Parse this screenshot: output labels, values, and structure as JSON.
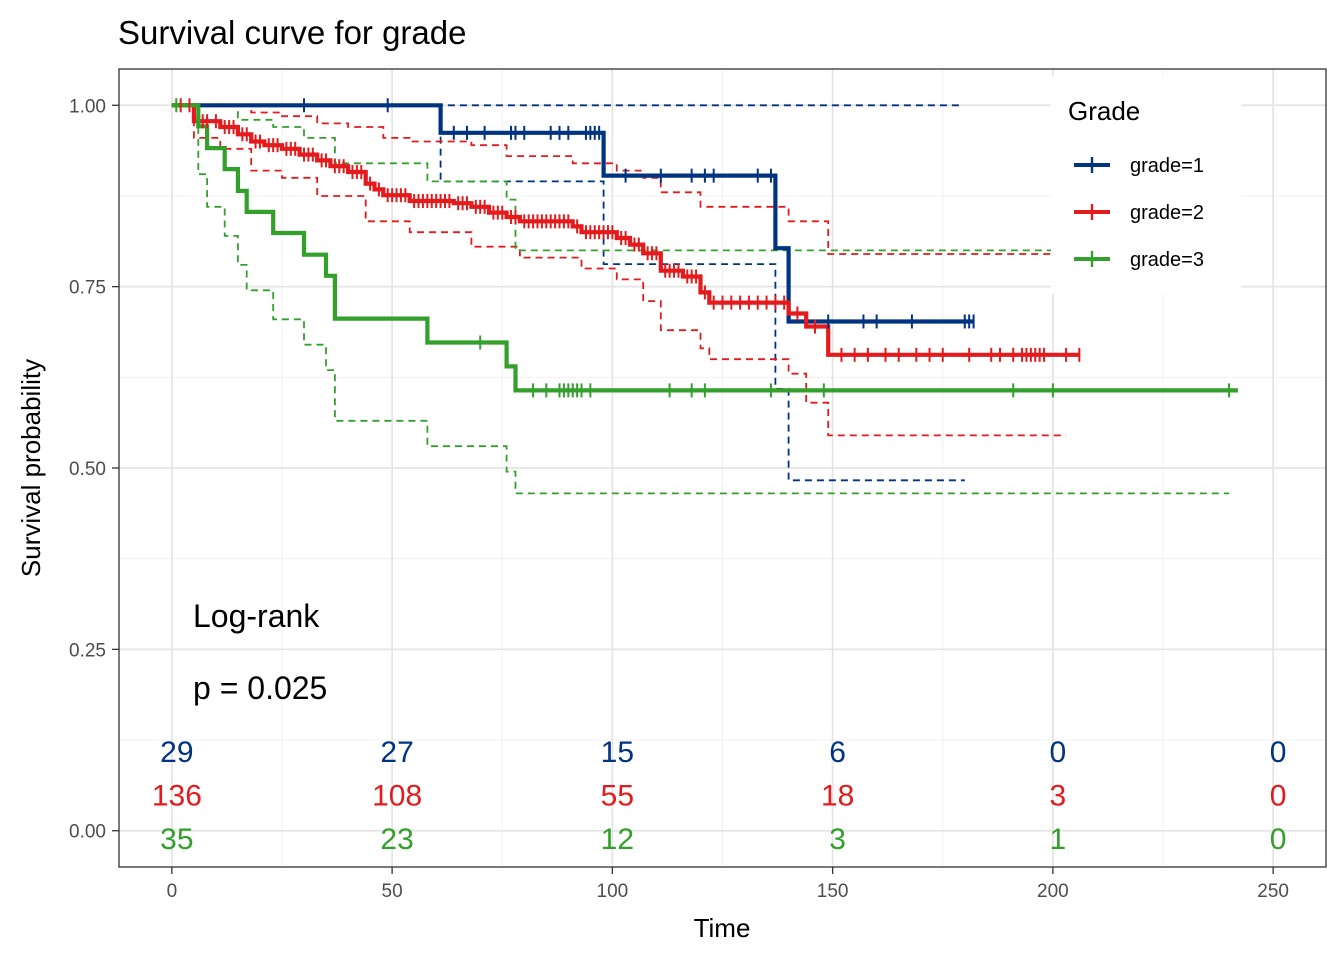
{
  "chart_data": {
    "type": "line",
    "title": "Survival curve for grade",
    "xlabel": "Time",
    "ylabel": "Survival probability",
    "xlim": [
      -12,
      262
    ],
    "ylim": [
      -0.05,
      1.05
    ],
    "x_ticks": [
      0,
      50,
      100,
      150,
      200,
      250
    ],
    "x_tick_labels": [
      "0",
      "50",
      "100",
      "150",
      "200",
      "250"
    ],
    "y_ticks": [
      0.0,
      0.25,
      0.5,
      0.75,
      1.0
    ],
    "y_tick_labels": [
      "0.00",
      "0.25",
      "0.50",
      "0.75",
      "1.00"
    ],
    "grid": true,
    "legend": {
      "title": "Grade",
      "position": "top-right",
      "entries": [
        "grade=1",
        "grade=2",
        "grade=3"
      ]
    },
    "annotations": [
      "Log-rank",
      "p = 0.025"
    ],
    "series": [
      {
        "name": "grade=1",
        "color": "#003380",
        "steps": [
          [
            0,
            1.0
          ],
          [
            61,
            0.962
          ],
          [
            98,
            0.903
          ],
          [
            137,
            0.803
          ],
          [
            140,
            0.702
          ],
          [
            182,
            0.702
          ]
        ],
        "censor_times": [
          30,
          49,
          64,
          67,
          71,
          77,
          78,
          80,
          86,
          88,
          90,
          94,
          95,
          96,
          97,
          103,
          111,
          118,
          121,
          123,
          133,
          136,
          149,
          157,
          160,
          168,
          180,
          181,
          182
        ],
        "ci_upper": [
          [
            0,
            1.0
          ],
          [
            179,
            1.0
          ]
        ],
        "ci_lower": [
          [
            0,
            1.0
          ],
          [
            61,
            0.895
          ],
          [
            98,
            0.781
          ],
          [
            137,
            0.609
          ],
          [
            140,
            0.483
          ],
          [
            180,
            0.483
          ]
        ]
      },
      {
        "name": "grade=2",
        "color": "#e41a1c",
        "steps": [
          [
            0,
            1.0
          ],
          [
            5,
            0.978
          ],
          [
            11,
            0.97
          ],
          [
            15,
            0.96
          ],
          [
            18,
            0.95
          ],
          [
            21,
            0.945
          ],
          [
            25,
            0.94
          ],
          [
            29,
            0.932
          ],
          [
            33,
            0.924
          ],
          [
            36,
            0.916
          ],
          [
            40,
            0.908
          ],
          [
            44,
            0.892
          ],
          [
            46,
            0.884
          ],
          [
            48,
            0.876
          ],
          [
            54,
            0.868
          ],
          [
            64,
            0.865
          ],
          [
            68,
            0.86
          ],
          [
            72,
            0.852
          ],
          [
            76,
            0.846
          ],
          [
            79,
            0.84
          ],
          [
            91,
            0.833
          ],
          [
            93,
            0.825
          ],
          [
            101,
            0.817
          ],
          [
            104,
            0.808
          ],
          [
            107,
            0.796
          ],
          [
            111,
            0.772
          ],
          [
            116,
            0.764
          ],
          [
            120,
            0.742
          ],
          [
            122,
            0.728
          ],
          [
            140,
            0.713
          ],
          [
            144,
            0.695
          ],
          [
            149,
            0.656
          ],
          [
            206,
            0.656
          ]
        ],
        "censor_times": [
          2,
          4,
          7,
          8,
          10,
          12,
          13,
          14,
          16,
          17,
          19,
          20,
          22,
          23,
          24,
          26,
          27,
          28,
          30,
          31,
          32,
          34,
          35,
          37,
          38,
          39,
          41,
          42,
          43,
          45,
          47,
          49,
          50,
          51,
          52,
          53,
          55,
          56,
          57,
          58,
          59,
          60,
          61,
          62,
          63,
          65,
          66,
          67,
          69,
          70,
          71,
          73,
          74,
          75,
          77,
          78,
          80,
          81,
          82,
          83,
          84,
          85,
          86,
          87,
          88,
          89,
          90,
          92,
          94,
          95,
          96,
          97,
          98,
          99,
          100,
          102,
          103,
          105,
          106,
          108,
          109,
          110,
          112,
          113,
          114,
          115,
          117,
          118,
          119,
          121,
          123,
          125,
          127,
          129,
          131,
          133,
          135,
          137,
          139,
          142,
          146,
          152,
          155,
          158,
          162,
          165,
          169,
          172,
          175,
          181,
          186,
          188,
          191,
          193,
          194,
          195,
          196,
          197,
          198,
          203,
          206
        ],
        "ci_upper": [
          [
            0,
            1.0
          ],
          [
            10,
            1.0
          ],
          [
            18,
            0.99
          ],
          [
            25,
            0.985
          ],
          [
            33,
            0.975
          ],
          [
            40,
            0.97
          ],
          [
            48,
            0.955
          ],
          [
            54,
            0.95
          ],
          [
            68,
            0.945
          ],
          [
            76,
            0.93
          ],
          [
            91,
            0.92
          ],
          [
            101,
            0.91
          ],
          [
            107,
            0.9
          ],
          [
            111,
            0.88
          ],
          [
            120,
            0.86
          ],
          [
            140,
            0.84
          ],
          [
            149,
            0.795
          ],
          [
            206,
            0.795
          ]
        ],
        "ci_lower": [
          [
            0,
            1.0
          ],
          [
            5,
            0.955
          ],
          [
            11,
            0.94
          ],
          [
            18,
            0.91
          ],
          [
            25,
            0.9
          ],
          [
            33,
            0.875
          ],
          [
            44,
            0.84
          ],
          [
            54,
            0.825
          ],
          [
            68,
            0.805
          ],
          [
            79,
            0.79
          ],
          [
            93,
            0.775
          ],
          [
            101,
            0.76
          ],
          [
            107,
            0.73
          ],
          [
            111,
            0.69
          ],
          [
            120,
            0.665
          ],
          [
            122,
            0.65
          ],
          [
            140,
            0.63
          ],
          [
            144,
            0.59
          ],
          [
            149,
            0.545
          ],
          [
            203,
            0.545
          ]
        ]
      },
      {
        "name": "grade=3",
        "color": "#33a02c",
        "steps": [
          [
            0,
            1.0
          ],
          [
            6,
            0.971
          ],
          [
            8,
            0.941
          ],
          [
            12,
            0.912
          ],
          [
            15,
            0.882
          ],
          [
            17,
            0.853
          ],
          [
            23,
            0.824
          ],
          [
            30,
            0.794
          ],
          [
            35,
            0.765
          ],
          [
            37,
            0.706
          ],
          [
            58,
            0.673
          ],
          [
            76,
            0.64
          ],
          [
            78,
            0.607
          ],
          [
            242,
            0.607
          ]
        ],
        "censor_times": [
          1,
          70,
          82,
          85,
          88,
          89,
          90,
          91,
          92,
          93,
          95,
          113,
          118,
          121,
          136,
          148,
          191,
          200,
          240
        ],
        "ci_upper": [
          [
            0,
            1.0
          ],
          [
            6,
            1.0
          ],
          [
            15,
            0.98
          ],
          [
            23,
            0.97
          ],
          [
            30,
            0.955
          ],
          [
            37,
            0.92
          ],
          [
            58,
            0.895
          ],
          [
            76,
            0.87
          ],
          [
            78,
            0.8
          ],
          [
            240,
            0.8
          ]
        ],
        "ci_lower": [
          [
            0,
            1.0
          ],
          [
            6,
            0.905
          ],
          [
            8,
            0.86
          ],
          [
            12,
            0.82
          ],
          [
            15,
            0.78
          ],
          [
            17,
            0.745
          ],
          [
            23,
            0.705
          ],
          [
            30,
            0.67
          ],
          [
            35,
            0.635
          ],
          [
            37,
            0.565
          ],
          [
            58,
            0.53
          ],
          [
            76,
            0.495
          ],
          [
            78,
            0.465
          ],
          [
            240,
            0.465
          ]
        ]
      }
    ],
    "risk_table": {
      "times": [
        0,
        50,
        100,
        150,
        200,
        250
      ],
      "rows": [
        {
          "name": "grade=1",
          "color": "#003380",
          "values": [
            "29",
            "27",
            "15",
            "6",
            "0",
            "0"
          ]
        },
        {
          "name": "grade=2",
          "color": "#e41a1c",
          "values": [
            "136",
            "108",
            "55",
            "18",
            "3",
            "0"
          ]
        },
        {
          "name": "grade=3",
          "color": "#33a02c",
          "values": [
            "35",
            "23",
            "12",
            "3",
            "1",
            "0"
          ]
        }
      ]
    }
  }
}
